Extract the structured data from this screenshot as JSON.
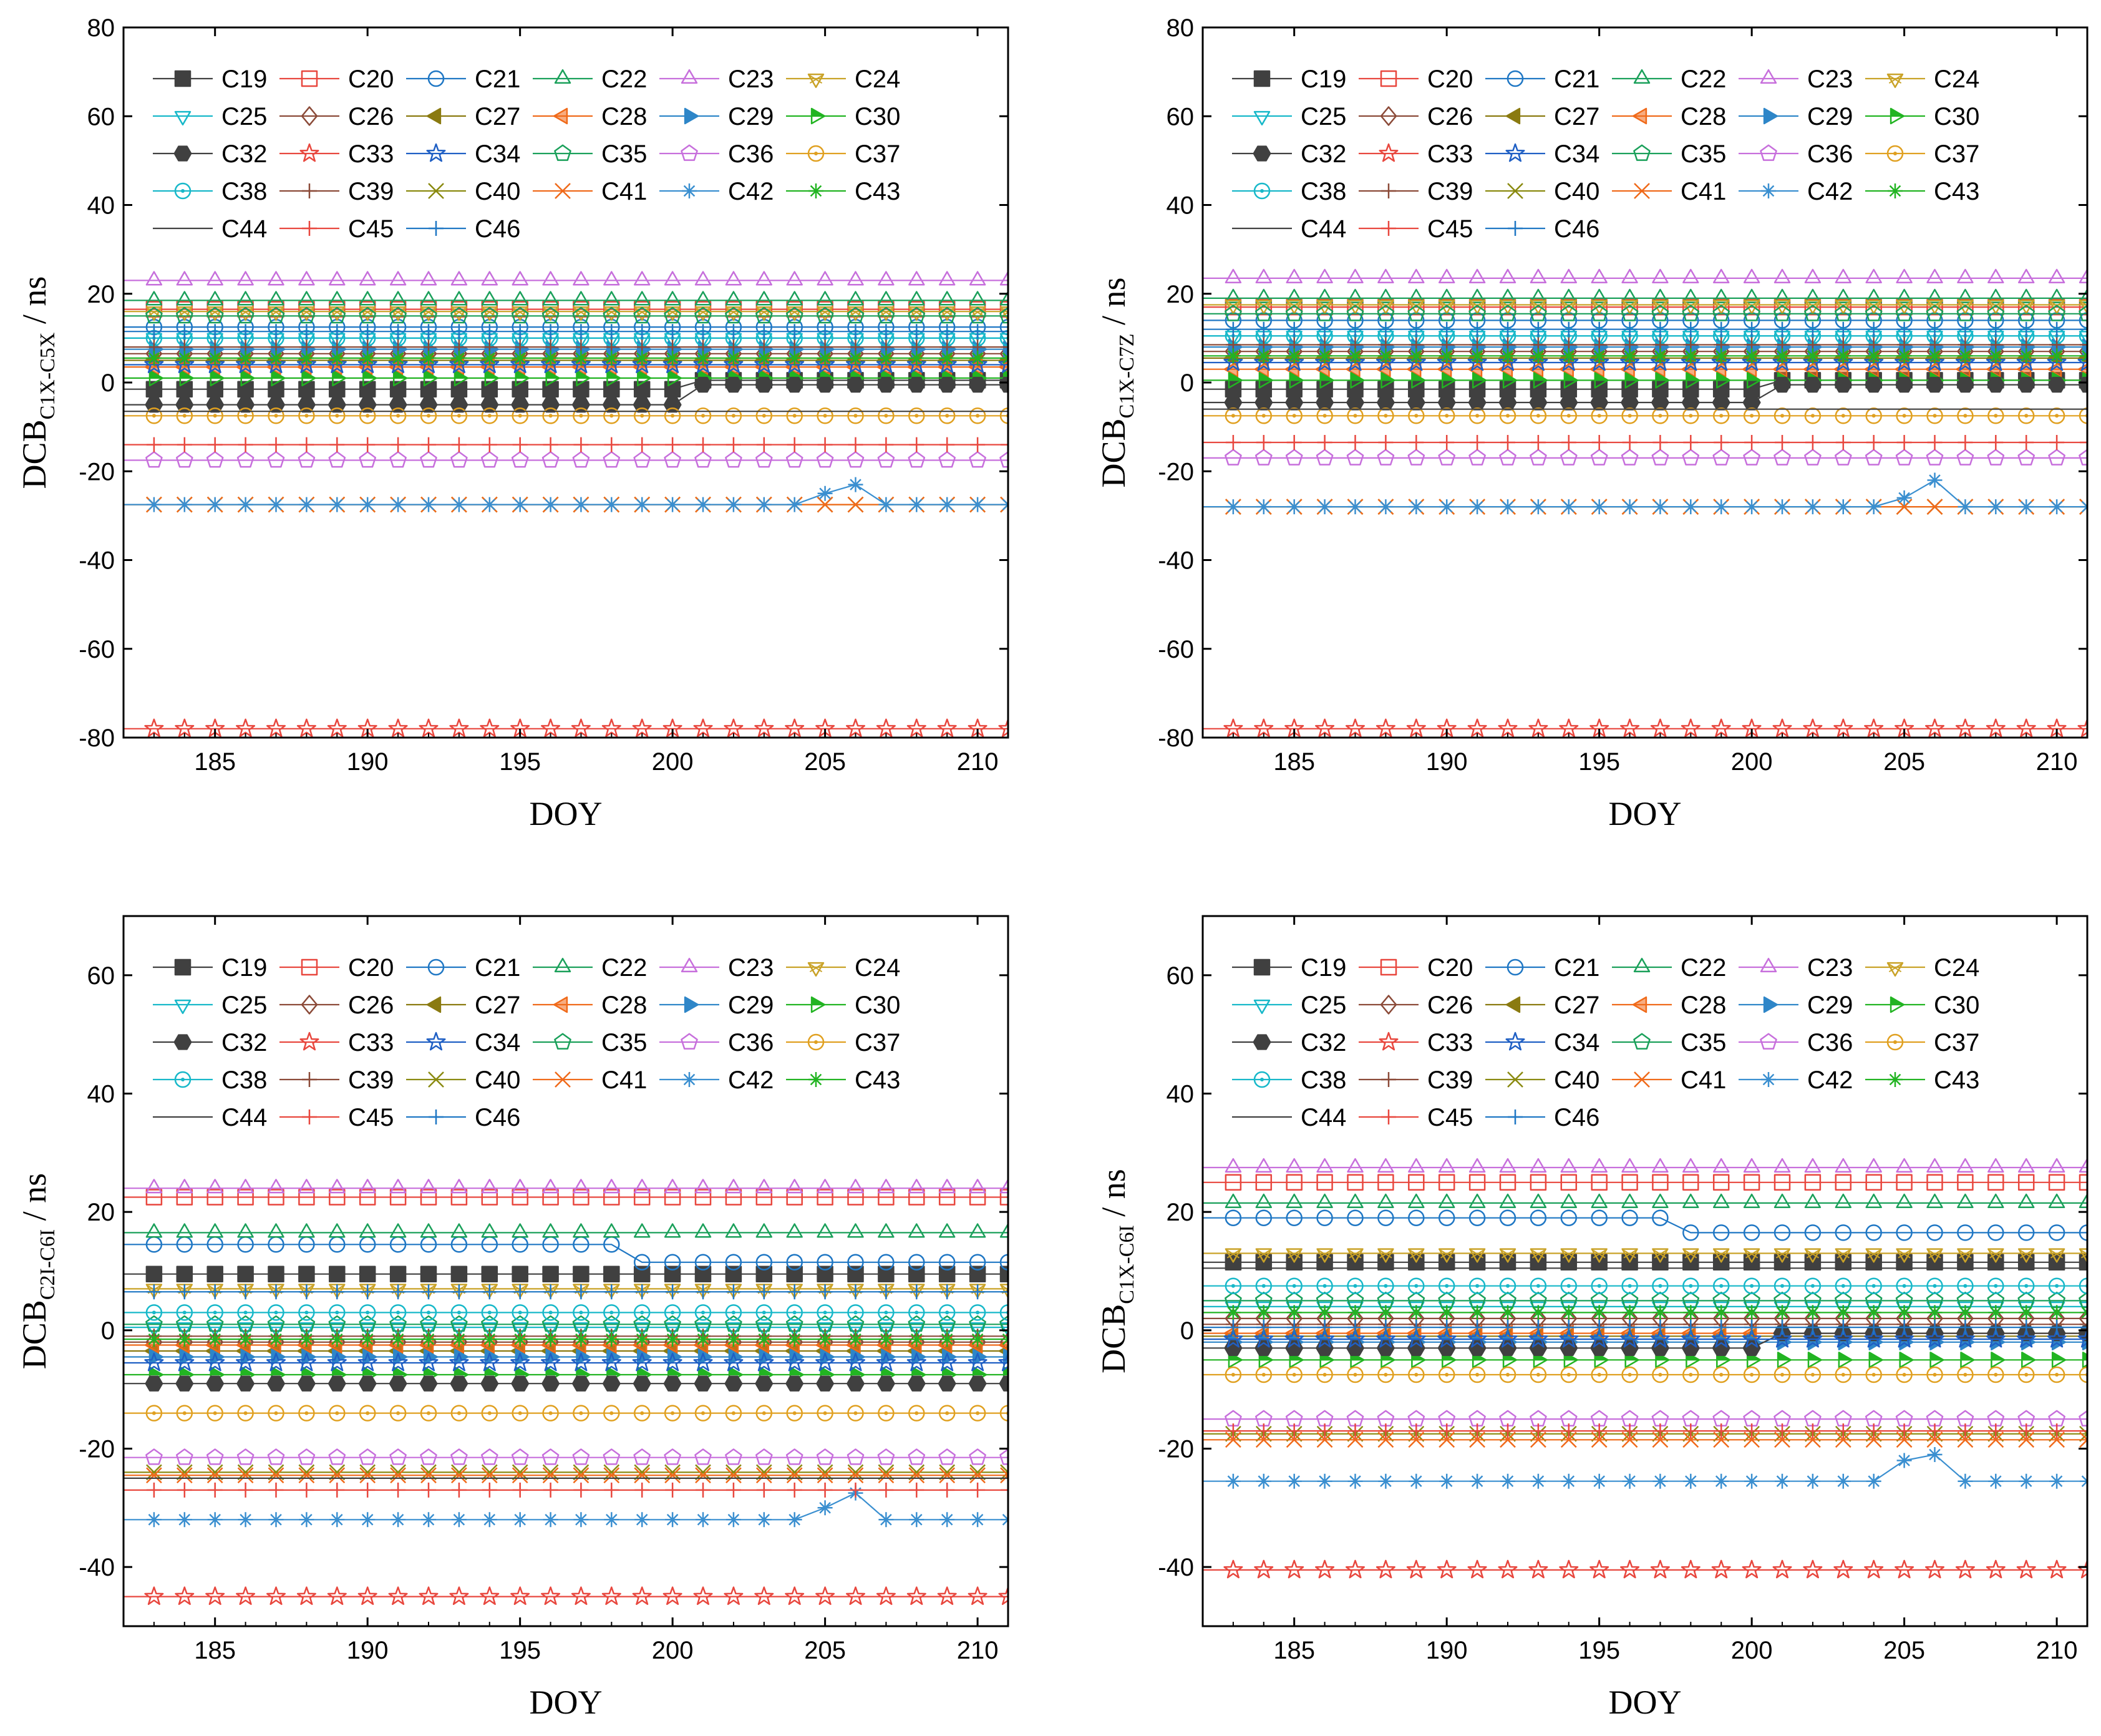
{
  "figure_title": "",
  "chart_data": [
    {
      "type": "line",
      "panel": "top-left",
      "title": "",
      "ylabel_main": "DCB",
      "ylabel_sub": "C1X-C5X",
      "ylabel_unit": " / ns",
      "xlabel": "DOY",
      "xlim": [
        182,
        211
      ],
      "ylim": [
        -80,
        80
      ],
      "xticks": [
        185,
        190,
        195,
        200,
        205,
        210
      ],
      "yticks": [
        -80,
        -60,
        -40,
        -20,
        0,
        20,
        40,
        60,
        80
      ],
      "legend_position": "top-left",
      "series": [
        {
          "name": "C19",
          "base": -1.5,
          "events": [
            [
              201,
              0.5
            ]
          ]
        },
        {
          "name": "C20",
          "base": 16.5
        },
        {
          "name": "C21",
          "base": 12.5
        },
        {
          "name": "C22",
          "base": 18.5
        },
        {
          "name": "C23",
          "base": 23.0
        },
        {
          "name": "C24",
          "base": 16.0
        },
        {
          "name": "C25",
          "base": 10.0
        },
        {
          "name": "C26",
          "base": 6.5
        },
        {
          "name": "C27",
          "base": 5.0
        },
        {
          "name": "C28",
          "base": 3.5
        },
        {
          "name": "C29",
          "base": 7.5
        },
        {
          "name": "C30",
          "base": 1.0
        },
        {
          "name": "C32",
          "base": -5.0,
          "events": [
            [
              201,
              -0.5
            ]
          ]
        },
        {
          "name": "C33",
          "base": -78.0
        },
        {
          "name": "C34",
          "base": 4.0
        },
        {
          "name": "C35",
          "base": 15.0
        },
        {
          "name": "C36",
          "base": -17.5
        },
        {
          "name": "C37",
          "base": -7.5
        },
        {
          "name": "C38",
          "base": 10.0
        },
        {
          "name": "C39",
          "base": 8.0
        },
        {
          "name": "C40",
          "base": -27.5
        },
        {
          "name": "C41",
          "base": -27.5
        },
        {
          "name": "C42",
          "base": -27.5,
          "spikes": [
            [
              205,
              -25.0
            ],
            [
              206,
              -23.0
            ]
          ]
        },
        {
          "name": "C43",
          "base": 5.5
        },
        {
          "name": "C44",
          "base": -6.5
        },
        {
          "name": "C45",
          "base": -14.0
        },
        {
          "name": "C46",
          "base": 11.5
        }
      ]
    },
    {
      "type": "line",
      "panel": "top-right",
      "title": "",
      "ylabel_main": "DCB",
      "ylabel_sub": "C1X-C7Z",
      "ylabel_unit": " / ns",
      "xlabel": "DOY",
      "xlim": [
        182,
        211
      ],
      "ylim": [
        -80,
        80
      ],
      "xticks": [
        185,
        190,
        195,
        200,
        205,
        210
      ],
      "yticks": [
        -80,
        -60,
        -40,
        -20,
        0,
        20,
        40,
        60,
        80
      ],
      "legend_position": "top-left",
      "series": [
        {
          "name": "C19",
          "base": -1.5,
          "events": [
            [
              201,
              0.5
            ]
          ]
        },
        {
          "name": "C20",
          "base": 17.0
        },
        {
          "name": "C21",
          "base": 14.0
        },
        {
          "name": "C22",
          "base": 19.0
        },
        {
          "name": "C23",
          "base": 23.5
        },
        {
          "name": "C24",
          "base": 17.5
        },
        {
          "name": "C25",
          "base": 10.5
        },
        {
          "name": "C26",
          "base": 7.0
        },
        {
          "name": "C27",
          "base": 5.5
        },
        {
          "name": "C28",
          "base": 3.0
        },
        {
          "name": "C29",
          "base": 8.0
        },
        {
          "name": "C30",
          "base": 0.5
        },
        {
          "name": "C32",
          "base": -4.5,
          "events": [
            [
              201,
              -0.5
            ]
          ]
        },
        {
          "name": "C33",
          "base": -78.0
        },
        {
          "name": "C34",
          "base": 4.5
        },
        {
          "name": "C35",
          "base": 15.5
        },
        {
          "name": "C36",
          "base": -17.0
        },
        {
          "name": "C37",
          "base": -7.5
        },
        {
          "name": "C38",
          "base": 10.5
        },
        {
          "name": "C39",
          "base": 8.5
        },
        {
          "name": "C40",
          "base": -28.0
        },
        {
          "name": "C41",
          "base": -28.0
        },
        {
          "name": "C42",
          "base": -28.0,
          "spikes": [
            [
              205,
              -26.0
            ],
            [
              206,
              -22.0
            ]
          ]
        },
        {
          "name": "C43",
          "base": 6.0
        },
        {
          "name": "C44",
          "base": -6.0
        },
        {
          "name": "C45",
          "base": -13.5
        },
        {
          "name": "C46",
          "base": 12.0
        }
      ]
    },
    {
      "type": "line",
      "panel": "bottom-left",
      "title": "",
      "ylabel_main": "DCB",
      "ylabel_sub": "C2I-C6I",
      "ylabel_unit": " / ns",
      "xlabel": "DOY",
      "xlim": [
        182,
        211
      ],
      "ylim": [
        -50,
        70
      ],
      "xticks": [
        185,
        190,
        195,
        200,
        205,
        210
      ],
      "yticks": [
        -40,
        -20,
        0,
        20,
        40,
        60
      ],
      "legend_position": "top-left",
      "series": [
        {
          "name": "C19",
          "base": 9.5
        },
        {
          "name": "C20",
          "base": 22.5
        },
        {
          "name": "C21",
          "base": 14.5,
          "events": [
            [
              199,
              11.5
            ]
          ]
        },
        {
          "name": "C22",
          "base": 16.5
        },
        {
          "name": "C23",
          "base": 24.0
        },
        {
          "name": "C24",
          "base": 7.0
        },
        {
          "name": "C25",
          "base": 0.5
        },
        {
          "name": "C26",
          "base": -2.0
        },
        {
          "name": "C27",
          "base": -3.5
        },
        {
          "name": "C28",
          "base": -2.5
        },
        {
          "name": "C29",
          "base": -4.5
        },
        {
          "name": "C30",
          "base": -7.5
        },
        {
          "name": "C32",
          "base": -9.0
        },
        {
          "name": "C33",
          "base": -45.0
        },
        {
          "name": "C34",
          "base": -5.5
        },
        {
          "name": "C35",
          "base": 1.0
        },
        {
          "name": "C36",
          "base": -21.5
        },
        {
          "name": "C37",
          "base": -14.0
        },
        {
          "name": "C38",
          "base": 3.0
        },
        {
          "name": "C39",
          "base": -1.0
        },
        {
          "name": "C40",
          "base": -24.0
        },
        {
          "name": "C41",
          "base": -24.5
        },
        {
          "name": "C42",
          "base": -32.0,
          "spikes": [
            [
              205,
              -30.0
            ],
            [
              206,
              -27.5
            ]
          ]
        },
        {
          "name": "C43",
          "base": -1.5
        },
        {
          "name": "C44",
          "base": -25.0
        },
        {
          "name": "C45",
          "base": -27.0
        },
        {
          "name": "C46",
          "base": 6.5
        }
      ]
    },
    {
      "type": "line",
      "panel": "bottom-right",
      "title": "",
      "ylabel_main": "DCB",
      "ylabel_sub": "C1X-C6I",
      "ylabel_unit": " / ns",
      "xlabel": "DOY",
      "xlim": [
        182,
        211
      ],
      "ylim": [
        -50,
        70
      ],
      "xticks": [
        185,
        190,
        195,
        200,
        205,
        210
      ],
      "yticks": [
        -40,
        -20,
        0,
        20,
        40,
        60
      ],
      "legend_position": "top-left",
      "series": [
        {
          "name": "C19",
          "base": 11.5
        },
        {
          "name": "C20",
          "base": 25.0
        },
        {
          "name": "C21",
          "base": 19.0,
          "events": [
            [
              198,
              16.5
            ]
          ]
        },
        {
          "name": "C22",
          "base": 21.5
        },
        {
          "name": "C23",
          "base": 27.5
        },
        {
          "name": "C24",
          "base": 13.0
        },
        {
          "name": "C25",
          "base": 4.0
        },
        {
          "name": "C26",
          "base": 2.0
        },
        {
          "name": "C27",
          "base": -1.0
        },
        {
          "name": "C28",
          "base": -0.5
        },
        {
          "name": "C29",
          "base": -2.0
        },
        {
          "name": "C30",
          "base": -5.0
        },
        {
          "name": "C32",
          "base": -3.0,
          "events": [
            [
              201,
              -0.5
            ]
          ]
        },
        {
          "name": "C33",
          "base": -40.5
        },
        {
          "name": "C34",
          "base": -1.5
        },
        {
          "name": "C35",
          "base": 5.0
        },
        {
          "name": "C36",
          "base": -15.0
        },
        {
          "name": "C37",
          "base": -7.5
        },
        {
          "name": "C38",
          "base": 7.5
        },
        {
          "name": "C39",
          "base": 1.0
        },
        {
          "name": "C40",
          "base": -17.5
        },
        {
          "name": "C41",
          "base": -18.5
        },
        {
          "name": "C42",
          "base": -25.5,
          "spikes": [
            [
              205,
              -22.0
            ],
            [
              206,
              -21.0
            ]
          ]
        },
        {
          "name": "C43",
          "base": 3.0
        },
        {
          "name": "C44",
          "base": 10.5
        },
        {
          "name": "C45",
          "base": -17.0
        },
        {
          "name": "C46",
          "base": 0.5
        }
      ]
    }
  ],
  "series_styles": {
    "C19": {
      "color": "#404040",
      "marker": "square-filled"
    },
    "C20": {
      "color": "#e8473e",
      "marker": "square-open"
    },
    "C21": {
      "color": "#1f77c4",
      "marker": "circle-open"
    },
    "C22": {
      "color": "#1aa05a",
      "marker": "triangle-up-open"
    },
    "C23": {
      "color": "#c76fdc",
      "marker": "triangle-up-open"
    },
    "C24": {
      "color": "#c9a227",
      "marker": "triangle-down-x"
    },
    "C25": {
      "color": "#17b8c9",
      "marker": "triangle-down-open"
    },
    "C26": {
      "color": "#8b4a38",
      "marker": "diamond-open"
    },
    "C27": {
      "color": "#8a7a10",
      "marker": "triangle-left-filled"
    },
    "C28": {
      "color": "#f06a1a",
      "marker": "triangle-left-half"
    },
    "C29": {
      "color": "#2e86c8",
      "marker": "triangle-right-filled"
    },
    "C30": {
      "color": "#22b422",
      "marker": "triangle-right-half"
    },
    "C32": {
      "color": "#404040",
      "marker": "hexagon-filled"
    },
    "C33": {
      "color": "#e8473e",
      "marker": "star-open"
    },
    "C34": {
      "color": "#1f5fc4",
      "marker": "star-open"
    },
    "C35": {
      "color": "#1aa05a",
      "marker": "pentagon-open"
    },
    "C36": {
      "color": "#c76fdc",
      "marker": "pentagon-open"
    },
    "C37": {
      "color": "#e0a020",
      "marker": "circle-dot"
    },
    "C38": {
      "color": "#17b8c9",
      "marker": "circle-dot"
    },
    "C39": {
      "color": "#8b4a38",
      "marker": "plus"
    },
    "C40": {
      "color": "#8a8a10",
      "marker": "x"
    },
    "C41": {
      "color": "#f06a1a",
      "marker": "x"
    },
    "C42": {
      "color": "#3a8fd0",
      "marker": "asterisk"
    },
    "C43": {
      "color": "#22b422",
      "marker": "asterisk"
    },
    "C44": {
      "color": "#404040",
      "marker": "none"
    },
    "C45": {
      "color": "#e8473e",
      "marker": "plus"
    },
    "C46": {
      "color": "#1f77c4",
      "marker": "plus"
    }
  }
}
